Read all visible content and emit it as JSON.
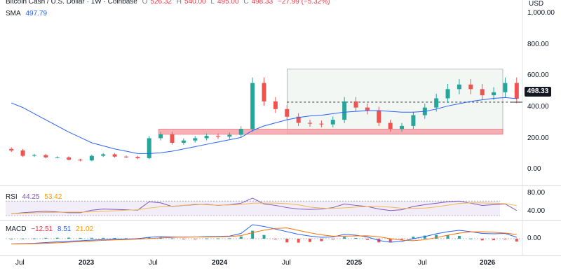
{
  "legend": {
    "title": "Bitcoin Cash / U.S. Dollar · 1W · Coinbase",
    "open_label": "O",
    "open": "526.32",
    "high_label": "H",
    "high": "540.00",
    "low_label": "L",
    "low": "495.00",
    "close_label": "C",
    "close": "498.33",
    "change": "−27.99 (−5.32%)",
    "sma_label": "SMA",
    "sma_value": "497.79"
  },
  "price_axis": {
    "currency": "USD",
    "ticks": [
      "1,000.00",
      "800.00",
      "600.00",
      "400.00",
      "200.00",
      "0.00"
    ],
    "last_price": "498.33"
  },
  "rsi": {
    "label": "RSI",
    "value": "44.25",
    "ma_value": "53.42",
    "ticks": [
      "80.00",
      "40.00"
    ]
  },
  "macd": {
    "label": "MACD",
    "hist": "−12.51",
    "macd_value": "8.51",
    "signal_value": "21.02",
    "ticks": [
      "0.00"
    ]
  },
  "time_axis": {
    "labels": [
      "Jul",
      "2023",
      "Jul",
      "2024",
      "Jul",
      "2025",
      "Jul",
      "2026"
    ]
  },
  "colors": {
    "up": "#26a69a",
    "down": "#ef5350",
    "sma": "#2962ff",
    "rsi": "#7e57c2",
    "rsi_ma": "#f5b74a",
    "macd": "#2962ff",
    "signal": "#ff6d00",
    "zone": "#f4a3ac"
  },
  "chart_data": {
    "type": "candlestick",
    "title": "Bitcoin Cash / U.S. Dollar · 1W · Coinbase",
    "ylim": [
      0,
      1050
    ],
    "x": [
      "2022-06",
      "2022-07",
      "2022-08",
      "2022-09",
      "2022-10",
      "2022-11",
      "2022-12",
      "2023-01",
      "2023-02",
      "2023-03",
      "2023-04",
      "2023-05",
      "2023-06",
      "2023-07",
      "2023-08",
      "2023-09",
      "2023-10",
      "2023-11",
      "2023-12",
      "2024-01",
      "2024-02",
      "2024-03",
      "2024-04",
      "2024-05",
      "2024-06",
      "2024-07",
      "2024-08",
      "2024-09",
      "2024-10",
      "2024-11",
      "2024-12",
      "2025-01",
      "2025-02",
      "2025-03",
      "2025-04",
      "2025-05",
      "2025-06",
      "2025-07",
      "2025-08",
      "2025-09",
      "2025-10",
      "2025-11",
      "2025-12",
      "2026-01",
      "2026-02"
    ],
    "close": [
      160,
      125,
      130,
      115,
      115,
      100,
      95,
      125,
      135,
      120,
      118,
      110,
      240,
      265,
      210,
      225,
      240,
      255,
      250,
      262,
      300,
      600,
      480,
      430,
      380,
      340,
      335,
      330,
      360,
      480,
      440,
      420,
      340,
      300,
      320,
      390,
      440,
      500,
      560,
      590,
      560,
      520,
      540,
      600,
      498
    ],
    "sma": [
      470,
      440,
      400,
      360,
      320,
      280,
      245,
      210,
      190,
      170,
      155,
      140,
      140,
      145,
      155,
      170,
      185,
      200,
      215,
      230,
      245,
      290,
      320,
      340,
      360,
      375,
      385,
      390,
      400,
      410,
      415,
      420,
      420,
      415,
      410,
      410,
      415,
      430,
      450,
      465,
      480,
      490,
      500,
      505,
      498
    ],
    "rsi": [
      35,
      38,
      40,
      42,
      40,
      38,
      38,
      45,
      48,
      47,
      46,
      45,
      68,
      65,
      55,
      58,
      60,
      61,
      58,
      60,
      64,
      78,
      62,
      58,
      52,
      48,
      47,
      48,
      52,
      62,
      58,
      55,
      48,
      44,
      46,
      55,
      60,
      64,
      68,
      70,
      64,
      58,
      60,
      62,
      44
    ],
    "macd": [
      -30,
      -28,
      -26,
      -22,
      -18,
      -14,
      -12,
      -8,
      -5,
      -3,
      -2,
      0,
      8,
      12,
      10,
      9,
      10,
      12,
      13,
      15,
      30,
      80,
      70,
      55,
      40,
      25,
      15,
      8,
      10,
      25,
      20,
      10,
      -10,
      -20,
      -15,
      0,
      12,
      28,
      40,
      48,
      40,
      30,
      28,
      30,
      8
    ],
    "zones": [
      {
        "from": 265,
        "to": 300,
        "color": "#f4a3ac"
      },
      {
        "from": 270,
        "to": 690,
        "color": "#f3f7f4"
      }
    ],
    "hline": 475
  }
}
